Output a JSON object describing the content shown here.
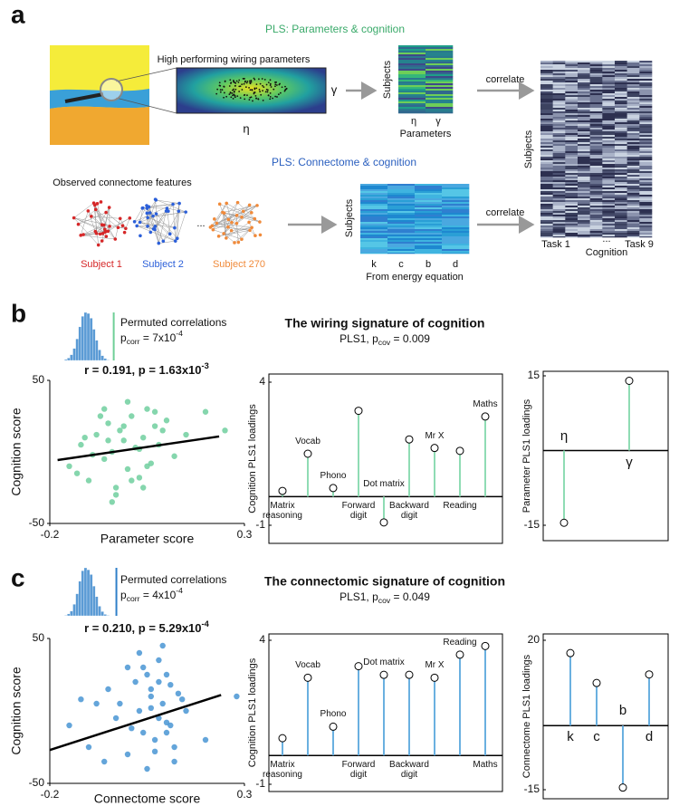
{
  "panel_labels": [
    "a",
    "b",
    "c"
  ],
  "diagram": {
    "pls_parameters_title": "PLS: Parameters & cognition",
    "high_performing": "High performing wiring parameters",
    "eta": "η",
    "gamma": "γ",
    "subjects": "Subjects",
    "parameters": "Parameters",
    "correlate": "correlate",
    "cognition": "Cognition",
    "task_first": "Task 1",
    "ellipsis": "...",
    "task_last": "Task 9",
    "pls_connectome_title": "PLS: Connectome & cognition",
    "observed": "Observed connectome features",
    "subjects_list": [
      "Subject 1",
      "Subject 2",
      "Subject 270"
    ],
    "energy_terms": [
      "k",
      "c",
      "b",
      "d"
    ],
    "from_energy": "From energy equation"
  },
  "chart_data": [
    {
      "type": "histogram",
      "title": "Permuted correlations",
      "annotation_runs": [
        {
          "t": "p"
        },
        {
          "t": "corr",
          "sub": true
        },
        {
          "t": " = 7x10"
        },
        {
          "t": "-4",
          "sup": true
        }
      ],
      "bins": [
        -0.16,
        -0.14,
        -0.12,
        -0.1,
        -0.08,
        -0.06,
        -0.04,
        -0.02,
        0,
        0.02,
        0.04,
        0.06,
        0.08,
        0.1,
        0.12,
        0.14,
        0.16
      ],
      "counts": [
        2,
        5,
        12,
        25,
        45,
        70,
        92,
        100,
        98,
        88,
        65,
        42,
        22,
        10,
        4,
        1
      ],
      "xlim": [
        -0.2,
        0.2
      ],
      "ylim": [
        0,
        100
      ],
      "color": "#5b9bd5",
      "observed": 0.191,
      "observed_color": "#6fcf97"
    },
    {
      "type": "scatter",
      "title_runs": [
        {
          "t": "r = 0.191, p = 1.63x10"
        },
        {
          "t": "-3",
          "sup": true
        }
      ],
      "x": [
        -0.15,
        -0.12,
        -0.1,
        -0.08,
        -0.06,
        -0.05,
        -0.04,
        -0.03,
        -0.02,
        -0.01,
        0,
        0.01,
        0.02,
        0.03,
        0.04,
        0.05,
        0.06,
        0.07,
        0.08,
        0.1,
        0.12,
        0.15,
        0.2,
        0.25,
        -0.13,
        -0.09,
        -0.07,
        -0.05,
        -0.03,
        -0.01,
        0.01,
        0.03,
        0.05,
        0.07,
        -0.11,
        -0.04,
        0,
        0.04,
        0.09,
        -0.06
      ],
      "y": [
        -10,
        5,
        -20,
        12,
        -5,
        20,
        0,
        -25,
        15,
        8,
        -12,
        25,
        3,
        -18,
        10,
        30,
        -8,
        18,
        5,
        22,
        -3,
        12,
        28,
        15,
        -15,
        -2,
        25,
        8,
        -30,
        18,
        -20,
        2,
        -10,
        28,
        10,
        -35,
        35,
        -25,
        15,
        30
      ],
      "xlim": [
        -0.2,
        0.3
      ],
      "xticks": [
        -0.2,
        0.3
      ],
      "ylim": [
        -50,
        50
      ],
      "yticks": [
        -50,
        50
      ],
      "xlabel": "Parameter score",
      "ylabel": "Cognition score",
      "color": "#66cc99",
      "fit": {
        "x": [
          -0.18,
          0.235
        ],
        "y": [
          -5.7,
          10.8
        ]
      },
      "fit_color": "#000000"
    },
    {
      "type": "stem",
      "title": "The wiring signature of cognition",
      "subtitle_runs": [
        {
          "t": "PLS1, p"
        },
        {
          "t": "cov",
          "sub": true
        },
        {
          "t": " = 0.009"
        }
      ],
      "categories": [
        "Matrix reasoning",
        "Vocab",
        "Phono",
        "Forward digit",
        "Dot matrix",
        "Backward digit",
        "Mr X",
        "Reading",
        "Maths"
      ],
      "values": [
        0.2,
        1.5,
        0.3,
        3.0,
        -0.9,
        2.0,
        1.7,
        1.6,
        2.8
      ],
      "ylim": [
        -1,
        4
      ],
      "yticks": [
        -1,
        4
      ],
      "ylabel": "Cognition PLS1 loadings",
      "color": "#8fdcb4"
    },
    {
      "type": "stem",
      "categories": [
        "η",
        "γ"
      ],
      "values": [
        -14.5,
        14
      ],
      "ylim": [
        -15,
        15
      ],
      "yticks": [
        -15,
        15
      ],
      "ylabel": "Parameter PLS1 loadings",
      "color": "#8fdcb4"
    },
    {
      "type": "histogram",
      "title": "Permuted correlations",
      "annotation_runs": [
        {
          "t": "p"
        },
        {
          "t": "corr",
          "sub": true
        },
        {
          "t": " = 4x10"
        },
        {
          "t": "-4",
          "sup": true
        }
      ],
      "bins": [
        -0.16,
        -0.14,
        -0.12,
        -0.1,
        -0.08,
        -0.06,
        -0.04,
        -0.02,
        0,
        0.02,
        0.04,
        0.06,
        0.08,
        0.1,
        0.12,
        0.14,
        0.16
      ],
      "counts": [
        1,
        4,
        10,
        24,
        46,
        72,
        94,
        100,
        96,
        86,
        62,
        40,
        20,
        9,
        3,
        1
      ],
      "xlim": [
        -0.2,
        0.2
      ],
      "ylim": [
        0,
        100
      ],
      "color": "#5b9bd5",
      "observed": 0.21,
      "observed_color": "#2f7fc8"
    },
    {
      "type": "scatter",
      "title_runs": [
        {
          "t": "r = 0.210, p = 5.29x10"
        },
        {
          "t": "-4",
          "sup": true
        }
      ],
      "x": [
        -0.15,
        -0.1,
        -0.08,
        -0.05,
        -0.03,
        0,
        0.02,
        0.03,
        0.04,
        0.05,
        0.06,
        0.07,
        0.08,
        0.09,
        0.1,
        0.11,
        0.12,
        0.13,
        0.15,
        0.2,
        0.28,
        -0.12,
        -0.06,
        0,
        0.01,
        0.03,
        0.05,
        0.06,
        0.08,
        0.09,
        0.1,
        0.12,
        0.14,
        0.04,
        0.07,
        -0.02,
        0.1,
        0.06,
        0.08,
        0.11
      ],
      "y": [
        -10,
        -25,
        5,
        15,
        -5,
        -30,
        20,
        0,
        -15,
        25,
        10,
        -20,
        35,
        5,
        -8,
        18,
        -35,
        12,
        0,
        -20,
        10,
        8,
        -35,
        30,
        -12,
        40,
        -40,
        15,
        -5,
        45,
        25,
        -25,
        8,
        30,
        -28,
        5,
        -15,
        2,
        20,
        -10
      ],
      "xlim": [
        -0.2,
        0.3
      ],
      "xticks": [
        -0.2,
        0.3
      ],
      "ylim": [
        -50,
        50
      ],
      "yticks": [
        -50,
        50
      ],
      "xlabel": "Connectome score",
      "ylabel": "Cognition score",
      "color": "#3d8fd1",
      "fit": {
        "x": [
          -0.2,
          0.24
        ],
        "y": [
          -27,
          11
        ]
      },
      "fit_color": "#000000"
    },
    {
      "type": "stem",
      "title": "The connectomic signature of cognition",
      "subtitle_runs": [
        {
          "t": "PLS1, p"
        },
        {
          "t": "cov",
          "sub": true
        },
        {
          "t": " = 0.049"
        }
      ],
      "categories": [
        "Matrix reasoning",
        "Vocab",
        "Phono",
        "Forward digit",
        "Dot matrix",
        "Backward digit",
        "Mr X",
        "Reading",
        "Maths"
      ],
      "values": [
        0.6,
        2.7,
        1.0,
        3.1,
        2.8,
        2.8,
        2.7,
        3.5,
        3.8
      ],
      "ylim": [
        -1,
        4
      ],
      "yticks": [
        -1,
        4
      ],
      "ylabel": "Cognition PLS1 loadings",
      "color": "#6ab0e0"
    },
    {
      "type": "stem",
      "categories": [
        "k",
        "c",
        "b",
        "d"
      ],
      "values": [
        17,
        10,
        -14.5,
        12
      ],
      "ylim": [
        -15,
        20
      ],
      "yticks": [
        -15,
        20
      ],
      "ylabel": "Connectome PLS1 loadings",
      "color": "#6ab0e0"
    }
  ]
}
